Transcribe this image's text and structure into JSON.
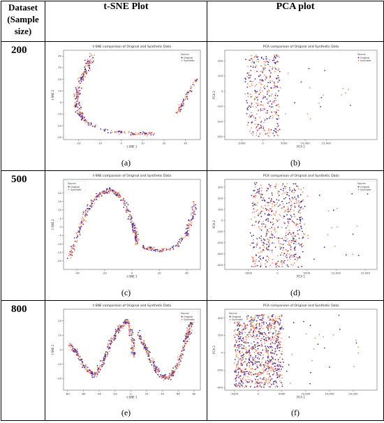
{
  "table": {
    "col0_line1": "Dataset",
    "col0_line2": "(Sample",
    "col0_line3": "size)",
    "col1": "t-SNE Plot",
    "col2": "PCA plot",
    "rows": [
      "200",
      "500",
      "800"
    ],
    "captions": [
      "(a)",
      "(b)",
      "(c)",
      "(d)",
      "(e)",
      "(f)"
    ]
  },
  "colors": {
    "original": "#4b2a8c",
    "synthetic": "#f08a68"
  },
  "legend": {
    "title": "Source",
    "original": "Original",
    "synthetic": "Synthetic"
  },
  "chart_data": [
    {
      "type": "scatter",
      "id": "a",
      "title": "t-SNE comparison of Original and Synthetic Data",
      "xlabel": "t-SNE 1",
      "ylabel": "t-SNE 2",
      "xlim": [
        -27,
        37
      ],
      "ylim": [
        -32,
        45
      ],
      "xticks": [
        -20,
        -10,
        0,
        10,
        20,
        30
      ],
      "yticks": [
        -30,
        -20,
        -10,
        0,
        10,
        20,
        30,
        40
      ],
      "legend_position": "top-right",
      "series": [
        {
          "name": "Original"
        },
        {
          "name": "Synthetic"
        }
      ]
    },
    {
      "type": "scatter",
      "id": "b",
      "title": "PCA comparison of Original and Synthetic Data",
      "xlabel": "PCA 1",
      "ylabel": "PCA 2",
      "xlim": [
        -9000,
        27000
      ],
      "ylim": [
        -320,
        270
      ],
      "xticks": [
        -5000,
        0,
        5000,
        10000,
        15000
      ],
      "xticklabels": [
        "-5000",
        "0",
        "5000",
        "10,000",
        "15,000"
      ],
      "yticks": [
        -300,
        -200,
        -100,
        0,
        100,
        200
      ],
      "legend_position": "top-right",
      "series": [
        {
          "name": "Original"
        },
        {
          "name": "Synthetic"
        }
      ]
    },
    {
      "type": "scatter",
      "id": "c",
      "title": "t-SNE comparison of Original and Synthetic Data",
      "xlabel": "t-SNE 1",
      "ylabel": "t-SNE 2",
      "xlim": [
        -50,
        50
      ],
      "ylim": [
        -25,
        28
      ],
      "xticks": [
        -40,
        -20,
        0,
        20,
        40
      ],
      "yticks": [
        -20,
        -15,
        -10,
        -5,
        0,
        5,
        10,
        15,
        20
      ],
      "legend_position": "top-left",
      "series": [
        {
          "name": "Original"
        },
        {
          "name": "Synthetic"
        }
      ]
    },
    {
      "type": "scatter",
      "id": "d",
      "title": "PCA comparison of Original and Synthetic Data",
      "xlabel": "PCA 1",
      "ylabel": "PCA 2",
      "xlim": [
        -9000,
        17000
      ],
      "ylim": [
        -440,
        370
      ],
      "xticks": [
        -5000,
        0,
        5000,
        10000,
        15000
      ],
      "xticklabels": [
        "-5000",
        "0",
        "5000",
        "10,000",
        "15,000"
      ],
      "yticks": [
        -400,
        -300,
        -200,
        -100,
        0,
        100,
        200,
        300
      ],
      "legend_position": "top-right",
      "series": [
        {
          "name": "Original"
        },
        {
          "name": "Synthetic"
        }
      ]
    },
    {
      "type": "scatter",
      "id": "e",
      "title": "t-SNE comparison of Original and Synthetic Data",
      "xlabel": "t-SNE 1",
      "ylabel": "t-SNE 2",
      "xlim": [
        -85,
        88
      ],
      "ylim": [
        -28,
        28
      ],
      "xticks": [
        -80,
        -60,
        -40,
        -20,
        0,
        20,
        40,
        60,
        80
      ],
      "yticks": [
        -20,
        -10,
        0,
        10,
        20
      ],
      "legend_position": "top-right",
      "series": [
        {
          "name": "Original"
        },
        {
          "name": "Synthetic"
        }
      ]
    },
    {
      "type": "scatter",
      "id": "f",
      "title": "PCA comparison of Original and Synthetic Data",
      "xlabel": "PCA 1",
      "ylabel": "PCA 2",
      "xlim": [
        -7000,
        25000
      ],
      "ylim": [
        -430,
        500
      ],
      "xticks": [
        -5000,
        0,
        5000,
        10000,
        15000,
        20000
      ],
      "xticklabels": [
        "-5000",
        "0",
        "5000",
        "10,000",
        "15,000",
        "20,000"
      ],
      "yticks": [
        -400,
        -200,
        0,
        200,
        400
      ],
      "legend_position": "top-left",
      "series": [
        {
          "name": "Original"
        },
        {
          "name": "Synthetic"
        }
      ]
    }
  ]
}
